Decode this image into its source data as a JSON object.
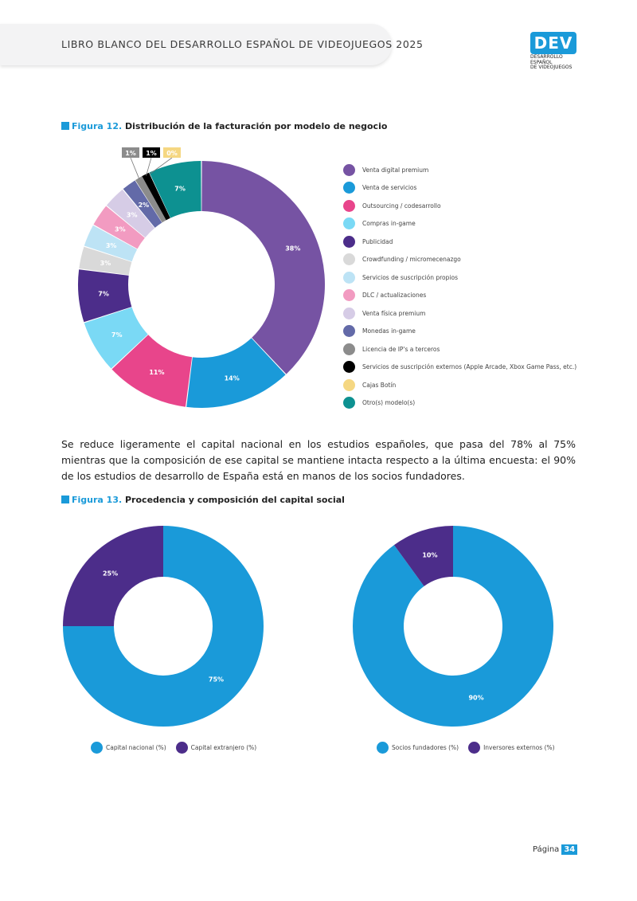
{
  "header": {
    "title": "LIBRO BLANCO DEL DESARROLLO ESPAÑOL DE VIDEOJUEGOS 2025"
  },
  "logo": {
    "mark": "DEV",
    "sub_line1": "DESARROLLO ESPAÑOL",
    "sub_line2": "DE VIDEOJUEGOS"
  },
  "figure12": {
    "number": "Figura 12.",
    "title": "Distribución de la facturación por modelo de negocio"
  },
  "body_text": "Se reduce ligeramente el capital nacional en los estudios españoles, que pasa del 78% al 75% mientras que la composición de ese capital se mantiene intacta respecto a la última encuesta: el 90% de los estudios de desarrollo de España está en manos de los socios fundadores.",
  "figure13": {
    "number": "Figura 13.",
    "title": "Procedencia y composición del capital social"
  },
  "footer": {
    "page_label": "Página",
    "page_number": "34"
  },
  "chart_data": [
    {
      "type": "pie",
      "donut": true,
      "categories": [
        "Venta digital premium",
        "Venta de servicios",
        "Outsourcing / codesarrollo",
        "Compras in-game",
        "Publicidad",
        "Crowdfunding / micromecenazgo",
        "Servicios de suscripción propios",
        "DLC / actualizaciones",
        "Venta física premium",
        "Monedas in-game",
        "Licencia de IP's a terceros",
        "Servicios de suscripción externos (Apple Arcade, Xbox Game Pass, etc.)",
        "Cajas Botín",
        "Otro(s) modelo(s)"
      ],
      "values": [
        38,
        14,
        11,
        7,
        7,
        3,
        3,
        3,
        3,
        2,
        1,
        1,
        0,
        7
      ],
      "labels": [
        "38%",
        "14%",
        "11%",
        "7%",
        "7%",
        "3%",
        "3%",
        "3%",
        "3%",
        "2%",
        "1%",
        "1%",
        "0%",
        "7%"
      ],
      "colors": [
        "#7653a3",
        "#1a9ad9",
        "#e8458b",
        "#7ad9f5",
        "#4c2d8a",
        "#d9d9d9",
        "#bde3f5",
        "#f29bc1",
        "#d6cce6",
        "#636aa8",
        "#8c8c8c",
        "#000000",
        "#f5d782",
        "#0d9191"
      ],
      "legend_position": "right"
    },
    {
      "type": "pie",
      "donut": true,
      "categories": [
        "Capital nacional (%)",
        "Capital extranjero (%)"
      ],
      "values": [
        75,
        25
      ],
      "labels": [
        "75%",
        "25%"
      ],
      "colors": [
        "#1a9ad9",
        "#4c2d8a"
      ],
      "legend_position": "bottom"
    },
    {
      "type": "pie",
      "donut": true,
      "categories": [
        "Socios fundadores (%)",
        "Inversores externos (%)"
      ],
      "values": [
        90,
        10
      ],
      "labels": [
        "90%",
        "10%"
      ],
      "colors": [
        "#1a9ad9",
        "#4c2d8a"
      ],
      "legend_position": "bottom"
    }
  ]
}
